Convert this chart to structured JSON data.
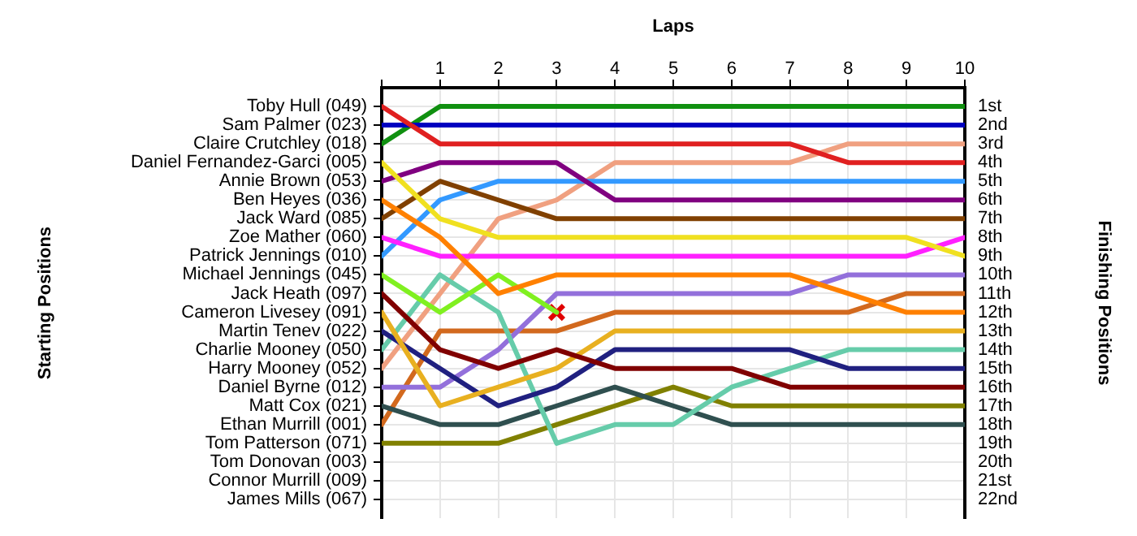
{
  "chart_data": {
    "type": "line",
    "xlabel": "Laps",
    "ylabel": "Finishing Positions",
    "x": [
      0,
      1,
      2,
      3,
      4,
      5,
      6,
      7,
      8,
      9,
      10
    ],
    "xlim": [
      0,
      10
    ],
    "xticks": [
      {
        "value": 0,
        "label": null
      },
      1,
      2,
      3,
      4,
      5,
      6,
      7,
      8,
      9,
      10
    ],
    "ylim": [
      23,
      0
    ],
    "yticks": [
      {
        "value": 1,
        "label": "1st"
      },
      {
        "value": 2,
        "label": "2nd"
      },
      {
        "value": 3,
        "label": "3rd"
      },
      {
        "value": 4,
        "label": "4th"
      },
      {
        "value": 5,
        "label": "5th"
      },
      {
        "value": 6,
        "label": "6th"
      },
      {
        "value": 7,
        "label": "7th"
      },
      {
        "value": 8,
        "label": "8th"
      },
      {
        "value": 9,
        "label": "9th"
      },
      {
        "value": 10,
        "label": "10th"
      },
      {
        "value": 11,
        "label": "11th"
      },
      {
        "value": 12,
        "label": "12th"
      },
      {
        "value": 13,
        "label": "13th"
      },
      {
        "value": 14,
        "label": "14th"
      },
      {
        "value": 15,
        "label": "15th"
      },
      {
        "value": 16,
        "label": "16th"
      },
      {
        "value": 17,
        "label": "17th"
      },
      {
        "value": 18,
        "label": "18th"
      },
      {
        "value": 19,
        "label": "19th"
      },
      {
        "value": 20,
        "label": "20th"
      },
      {
        "value": 21,
        "label": "21st"
      },
      {
        "value": 22,
        "label": "22nd"
      }
    ],
    "grid": true,
    "marker": "none",
    "annotations": [
      "Starting Positions",
      "Toby Hull (049)",
      "Sam Palmer (023)",
      "Claire Crutchley (018)",
      "Daniel Fernandez-Garci (005)",
      "Annie Brown (053)",
      "Ben Heyes (036)",
      "Jack Ward (085)",
      "Zoe Mather (060)",
      "Patrick Jennings (010)",
      "Michael Jennings (045)",
      "Jack Heath (097)",
      "Cameron Livesey (091)",
      "Martin Tenev (022)",
      "Charlie Mooney (050)",
      "Harry Mooney (052)",
      "Daniel Byrne (012)",
      "Matt Cox (021)",
      "Ethan Murrill (001)",
      "Tom Patterson (071)",
      "Tom Donovan (003)",
      "Connor Murrill (009)",
      "James Mills (067)"
    ],
    "series": [
      {
        "color": "#e02020",
        "values": [
          1,
          3,
          3,
          3,
          3,
          3,
          3,
          3,
          4,
          4,
          4
        ]
      },
      {
        "color": "#0000c0",
        "values": [
          2,
          2,
          2,
          2,
          2,
          2,
          2,
          2,
          2,
          2,
          2
        ]
      },
      {
        "color": "#109010",
        "values": [
          3,
          1,
          1,
          1,
          1,
          1,
          1,
          1,
          1,
          1,
          1
        ]
      },
      {
        "color": "#f0e020",
        "values": [
          4,
          7,
          8,
          8,
          8,
          8,
          8,
          8,
          8,
          8,
          9
        ]
      },
      {
        "color": "#800080",
        "values": [
          5,
          4,
          4,
          4,
          6,
          6,
          6,
          6,
          6,
          6,
          6
        ]
      },
      {
        "color": "#ff8000",
        "values": [
          6,
          8,
          11,
          10,
          10,
          10,
          10,
          10,
          11,
          12,
          12
        ]
      },
      {
        "color": "#804000",
        "values": [
          7,
          5,
          6,
          7,
          7,
          7,
          7,
          7,
          7,
          7,
          7
        ]
      },
      {
        "color": "#ff20ff",
        "values": [
          8,
          9,
          9,
          9,
          9,
          9,
          9,
          9,
          9,
          9,
          8
        ]
      },
      {
        "color": "#3399ff",
        "values": [
          9,
          6,
          5,
          5,
          5,
          5,
          5,
          5,
          5,
          5,
          5
        ]
      },
      {
        "color": "#80f020",
        "values": [
          10,
          12,
          10,
          12,
          null,
          null,
          null,
          null,
          null,
          null,
          null
        ]
      },
      {
        "color": "#800000",
        "values": [
          11,
          14,
          15,
          14,
          15,
          15,
          15,
          16,
          16,
          16,
          16
        ]
      },
      {
        "color": "#e8b020",
        "values": [
          12,
          17,
          16,
          15,
          13,
          13,
          13,
          13,
          13,
          13,
          13
        ]
      },
      {
        "color": "#202080",
        "values": [
          13,
          15,
          17,
          16,
          14,
          14,
          14,
          14,
          15,
          15,
          15
        ]
      },
      {
        "color": "#66ccaa",
        "values": [
          14,
          10,
          12,
          19,
          18,
          18,
          16,
          15,
          14,
          14,
          14
        ]
      },
      {
        "color": "#f0a080",
        "values": [
          15,
          11,
          7,
          6,
          4,
          4,
          4,
          4,
          3,
          3,
          3
        ]
      },
      {
        "color": "#9370db",
        "values": [
          16,
          16,
          14,
          11,
          11,
          11,
          11,
          11,
          10,
          10,
          10
        ]
      },
      {
        "color": "#2f4f4f",
        "values": [
          17,
          18,
          18,
          17,
          16,
          17,
          18,
          18,
          18,
          18,
          18
        ]
      },
      {
        "color": "#d2691e",
        "values": [
          18,
          13,
          13,
          13,
          12,
          12,
          12,
          12,
          12,
          11,
          11
        ]
      },
      {
        "color": "#808000",
        "values": [
          19,
          19,
          19,
          18,
          17,
          16,
          17,
          17,
          17,
          17,
          17
        ]
      },
      {
        "type": "scatter",
        "marker": "cross",
        "color": "#e00000",
        "x": [
          3
        ],
        "values": [
          12
        ]
      }
    ]
  }
}
